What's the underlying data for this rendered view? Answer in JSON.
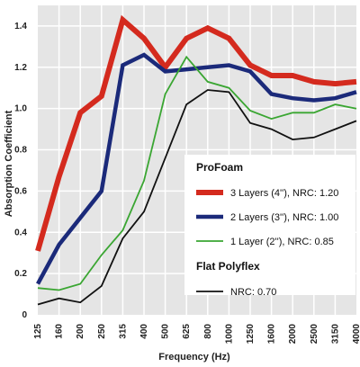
{
  "chart_data": {
    "type": "line",
    "xlabel": "Frequency (Hz)",
    "ylabel": "Absorption Coefficient",
    "ylim": [
      0,
      1.5
    ],
    "yticks": [
      "0",
      "0.2",
      "0.4",
      "0.6",
      "0.8",
      "1.0",
      "1.2",
      "1.4"
    ],
    "categories": [
      "125",
      "160",
      "200",
      "250",
      "315",
      "400",
      "500",
      "625",
      "800",
      "1000",
      "1250",
      "1600",
      "2000",
      "2500",
      "3150",
      "4000"
    ],
    "grid": "horizontal",
    "legend_position": "bottom-right",
    "legend_groups": [
      {
        "heading": "ProFoam",
        "series_indices": [
          0,
          1,
          2
        ]
      },
      {
        "heading": "Flat Polyflex",
        "series_indices": [
          3
        ]
      }
    ],
    "series": [
      {
        "name": "3 Layers (4''), NRC: 1.20",
        "color": "#d42a1e",
        "values": [
          0.31,
          0.67,
          0.98,
          1.06,
          1.43,
          1.34,
          1.2,
          1.34,
          1.39,
          1.34,
          1.21,
          1.16,
          1.16,
          1.13,
          1.12,
          1.13
        ]
      },
      {
        "name": "2 Layers (3''), NRC: 1.00",
        "color": "#1b2a7a",
        "values": [
          0.15,
          0.34,
          0.47,
          0.6,
          1.21,
          1.26,
          1.18,
          1.19,
          1.2,
          1.21,
          1.18,
          1.07,
          1.05,
          1.04,
          1.05,
          1.08
        ]
      },
      {
        "name": "1 Layer (2''), NRC: 0.85",
        "color": "#3aa632",
        "values": [
          0.13,
          0.12,
          0.15,
          0.29,
          0.41,
          0.65,
          1.07,
          1.25,
          1.13,
          1.1,
          0.99,
          0.95,
          0.98,
          0.98,
          1.02,
          1.0
        ]
      },
      {
        "name": "NRC: 0.70",
        "color": "#111111",
        "values": [
          0.05,
          0.08,
          0.06,
          0.14,
          0.37,
          0.5,
          0.76,
          1.02,
          1.09,
          1.08,
          0.93,
          0.9,
          0.85,
          0.86,
          0.9,
          0.94
        ]
      }
    ]
  }
}
